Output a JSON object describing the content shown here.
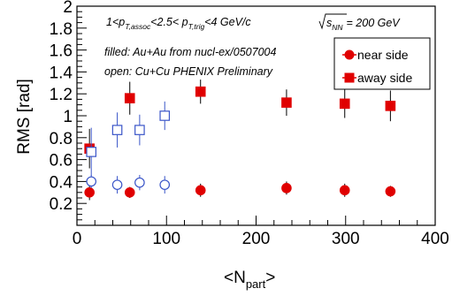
{
  "chart_data": {
    "type": "scatter",
    "xlim": [
      0,
      400
    ],
    "ylim": [
      0,
      2
    ],
    "x_ticks": [
      0,
      100,
      200,
      300,
      400
    ],
    "y_ticks": [
      0.2,
      0.4,
      0.6,
      0.8,
      1,
      1.2,
      1.4,
      1.6,
      1.8,
      2
    ],
    "x_tick_labels": [
      "0",
      "100",
      "200",
      "300",
      "400"
    ],
    "y_tick_labels": [
      "0.2",
      "0.4",
      "0.6",
      "0.8",
      "1",
      "1.2",
      "1.4",
      "1.6",
      "1.8",
      "2"
    ],
    "ylabel": "RMS [rad]",
    "xlabel_main": "<N",
    "xlabel_sub": "part",
    "xlabel_end": ">",
    "legend_position": "top-right",
    "annotations": {
      "kinematics_a": "1<p",
      "kinematics_a_sub": "T,assoc",
      "kinematics_b": "<2.5< p",
      "kinematics_b_sub": "T,trig",
      "kinematics_c": "<4 GeV/c",
      "energy_a": "s",
      "energy_a_sub": "NN",
      "energy_b": "= 200 GeV",
      "filled_note": "filled: Au+Au from nucl-ex/0507004",
      "open_note": "open: Cu+Cu PHENIX Preliminary"
    },
    "series": [
      {
        "name": "near side",
        "system": "Au+Au",
        "marker": "circle",
        "filled": true,
        "color": "#e00000",
        "points": [
          {
            "x": 14,
            "y": 0.3,
            "err": 0.07
          },
          {
            "x": 59,
            "y": 0.3,
            "err": 0.05
          },
          {
            "x": 138,
            "y": 0.32,
            "err": 0.06
          },
          {
            "x": 234,
            "y": 0.34,
            "err": 0.06
          },
          {
            "x": 299,
            "y": 0.32,
            "err": 0.06
          },
          {
            "x": 350,
            "y": 0.31,
            "err": 0.05
          }
        ]
      },
      {
        "name": "away side",
        "system": "Au+Au",
        "marker": "square",
        "filled": true,
        "color": "#e00000",
        "points": [
          {
            "x": 14,
            "y": 0.7,
            "err": 0.18
          },
          {
            "x": 59,
            "y": 1.16,
            "err": 0.15
          },
          {
            "x": 138,
            "y": 1.22,
            "err": 0.11
          },
          {
            "x": 234,
            "y": 1.12,
            "err": 0.12
          },
          {
            "x": 299,
            "y": 1.11,
            "err": 0.13
          },
          {
            "x": 350,
            "y": 1.09,
            "err": 0.14
          }
        ]
      },
      {
        "system": "Cu+Cu",
        "marker": "circle",
        "filled": false,
        "color": "#3a55c8",
        "points": [
          {
            "x": 16,
            "y": 0.4,
            "err": 0.06
          },
          {
            "x": 45,
            "y": 0.37,
            "err": 0.08
          },
          {
            "x": 70,
            "y": 0.39,
            "err": 0.07
          },
          {
            "x": 98,
            "y": 0.37,
            "err": 0.08
          }
        ]
      },
      {
        "system": "Cu+Cu",
        "marker": "square",
        "filled": false,
        "color": "#3a55c8",
        "points": [
          {
            "x": 16,
            "y": 0.67,
            "err": 0.22
          },
          {
            "x": 45,
            "y": 0.87,
            "err": 0.16
          },
          {
            "x": 70,
            "y": 0.87,
            "err": 0.14
          },
          {
            "x": 98,
            "y": 1.0,
            "err": 0.13
          }
        ]
      }
    ],
    "legend": [
      {
        "label": "near side",
        "marker": "circle",
        "color": "#e00000"
      },
      {
        "label": "away side",
        "marker": "square",
        "color": "#e00000"
      }
    ]
  }
}
